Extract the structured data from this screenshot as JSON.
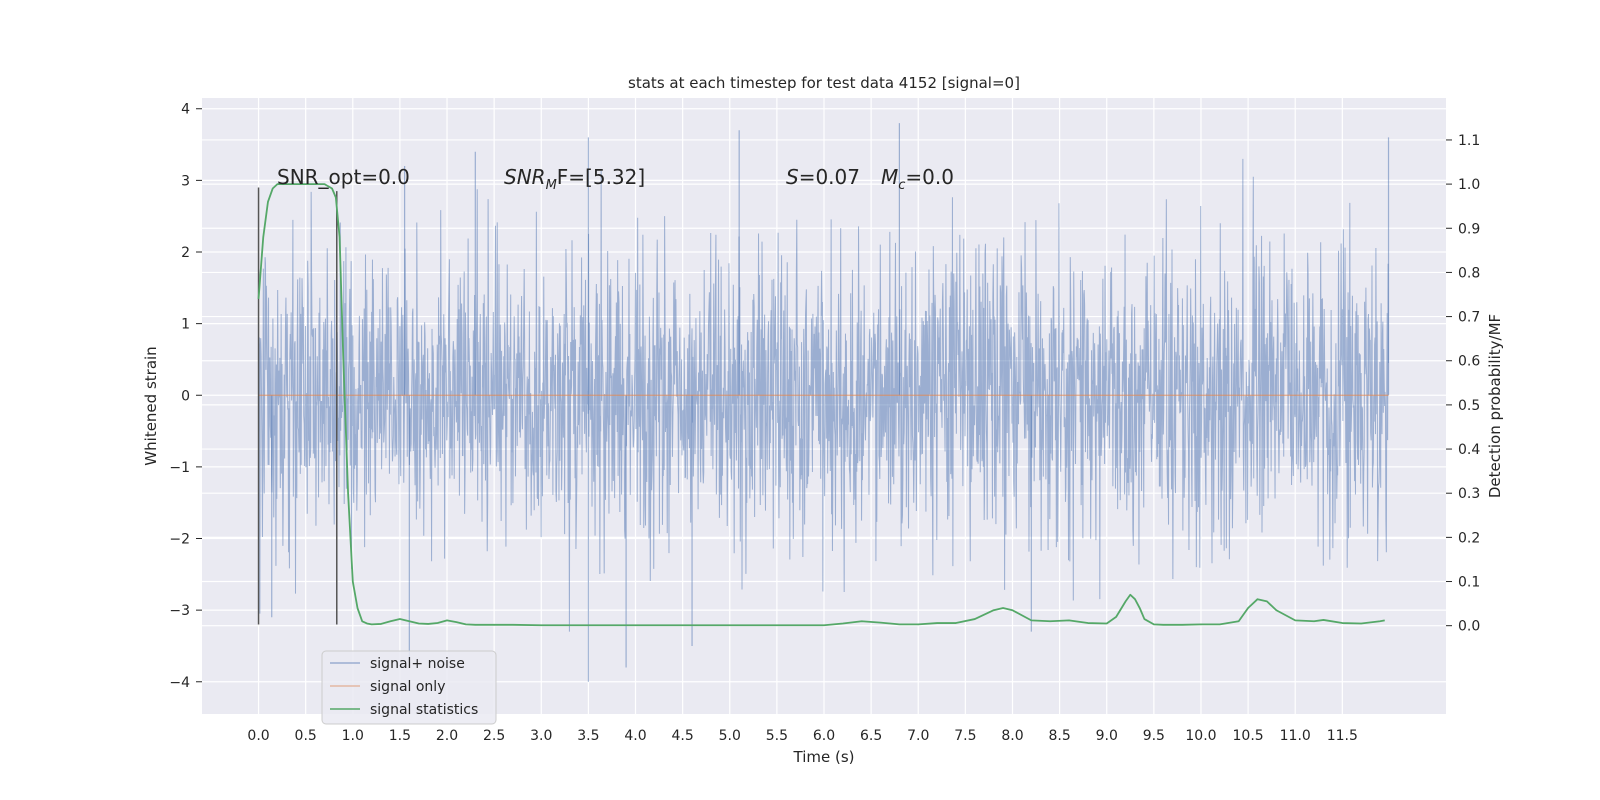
{
  "chart_data": {
    "type": "line",
    "title": "stats at each timestep for test data 4152 [signal=0]",
    "xlabel": "Time (s)",
    "ylabel": "Whitened strain",
    "y2label": "Detection probability/MF",
    "xlim": [
      -0.6,
      12.6
    ],
    "ylim": [
      -4.45,
      4.15
    ],
    "y2lim": [
      -0.2,
      1.195
    ],
    "x_ticks": [
      "0.0",
      "0.5",
      "1.0",
      "1.5",
      "2.0",
      "2.5",
      "3.0",
      "3.5",
      "4.0",
      "4.5",
      "5.0",
      "5.5",
      "6.0",
      "6.5",
      "7.0",
      "7.5",
      "8.0",
      "8.5",
      "9.0",
      "9.5",
      "10.0",
      "10.5",
      "11.0",
      "11.5"
    ],
    "y_ticks": [
      "−4",
      "−3",
      "−2",
      "−1",
      "0",
      "1",
      "2",
      "3",
      "4"
    ],
    "y2_ticks": [
      "0.0",
      "0.1",
      "0.2",
      "0.3",
      "0.4",
      "0.5",
      "0.6",
      "0.7",
      "0.8",
      "0.9",
      "1.0",
      "1.1"
    ],
    "grid": true,
    "legend_position": "lower-left",
    "series": [
      {
        "name": "signal+ noise",
        "color": "#4c72b0",
        "style": "dense noise, roughly between -2.5 and 2.5 with peaks near -4 and 3.8",
        "x_range": [
          0.0,
          11.99
        ],
        "approx_peaks": [
          [
            0.14,
            -3.1
          ],
          [
            1.55,
            3.2
          ],
          [
            1.6,
            -3.7
          ],
          [
            2.3,
            3.4
          ],
          [
            3.5,
            3.6
          ],
          [
            3.5,
            -4.0
          ],
          [
            3.9,
            -3.8
          ],
          [
            4.6,
            -3.5
          ],
          [
            5.1,
            3.7
          ],
          [
            6.8,
            3.8
          ],
          [
            8.2,
            -3.3
          ],
          [
            11.99,
            3.6
          ]
        ]
      },
      {
        "name": "signal only",
        "color": "#dd8452",
        "x": [
          0.0,
          11.99
        ],
        "y": [
          0.0,
          0.0
        ]
      },
      {
        "name": "signal statistics",
        "color": "#55a868",
        "axis": "right",
        "x": [
          0.0,
          0.05,
          0.1,
          0.15,
          0.2,
          0.3,
          0.4,
          0.5,
          0.6,
          0.7,
          0.78,
          0.82,
          0.86,
          0.9,
          0.95,
          1.0,
          1.05,
          1.1,
          1.15,
          1.2,
          1.3,
          1.4,
          1.5,
          1.6,
          1.7,
          1.8,
          1.9,
          2.0,
          2.1,
          2.2,
          2.3,
          2.5,
          2.7,
          3.0,
          3.5,
          4.0,
          4.5,
          5.0,
          5.5,
          6.0,
          6.2,
          6.4,
          6.6,
          6.8,
          7.0,
          7.2,
          7.4,
          7.6,
          7.8,
          7.9,
          8.0,
          8.2,
          8.4,
          8.6,
          8.8,
          9.0,
          9.1,
          9.2,
          9.25,
          9.3,
          9.35,
          9.4,
          9.5,
          9.6,
          9.8,
          10.0,
          10.2,
          10.4,
          10.5,
          10.6,
          10.7,
          10.8,
          11.0,
          11.2,
          11.3,
          11.5,
          11.7,
          11.9,
          11.95
        ],
        "y": [
          0.74,
          0.88,
          0.96,
          0.99,
          1.0,
          1.0,
          1.0,
          1.0,
          1.0,
          1.0,
          0.99,
          0.97,
          0.88,
          0.6,
          0.3,
          0.1,
          0.04,
          0.01,
          0.005,
          0.003,
          0.004,
          0.01,
          0.015,
          0.01,
          0.005,
          0.004,
          0.006,
          0.012,
          0.008,
          0.003,
          0.002,
          0.002,
          0.002,
          0.001,
          0.001,
          0.001,
          0.001,
          0.001,
          0.001,
          0.001,
          0.005,
          0.01,
          0.007,
          0.003,
          0.003,
          0.006,
          0.006,
          0.015,
          0.035,
          0.04,
          0.035,
          0.012,
          0.01,
          0.012,
          0.006,
          0.005,
          0.02,
          0.055,
          0.07,
          0.06,
          0.04,
          0.015,
          0.003,
          0.002,
          0.002,
          0.003,
          0.003,
          0.01,
          0.04,
          0.06,
          0.055,
          0.035,
          0.012,
          0.01,
          0.013,
          0.006,
          0.005,
          0.01,
          0.012
        ]
      }
    ],
    "vlines": [
      {
        "x": 0.0,
        "ymin": -3.2,
        "ymax": 2.9,
        "color": "#555555"
      },
      {
        "x": 0.83,
        "ymin": -3.2,
        "ymax": 2.85,
        "color": "#555555"
      }
    ],
    "annotations": {
      "snr_opt": "SNR_opt=0.0",
      "snr_mf_main": "SNR",
      "snr_mf_sub": "M",
      "snr_mf_rest": "F=[5.32]",
      "s_label": "S",
      "s_value": "=0.07",
      "mc_label": "M",
      "mc_sub": "c",
      "mc_value": "=0.0"
    }
  }
}
